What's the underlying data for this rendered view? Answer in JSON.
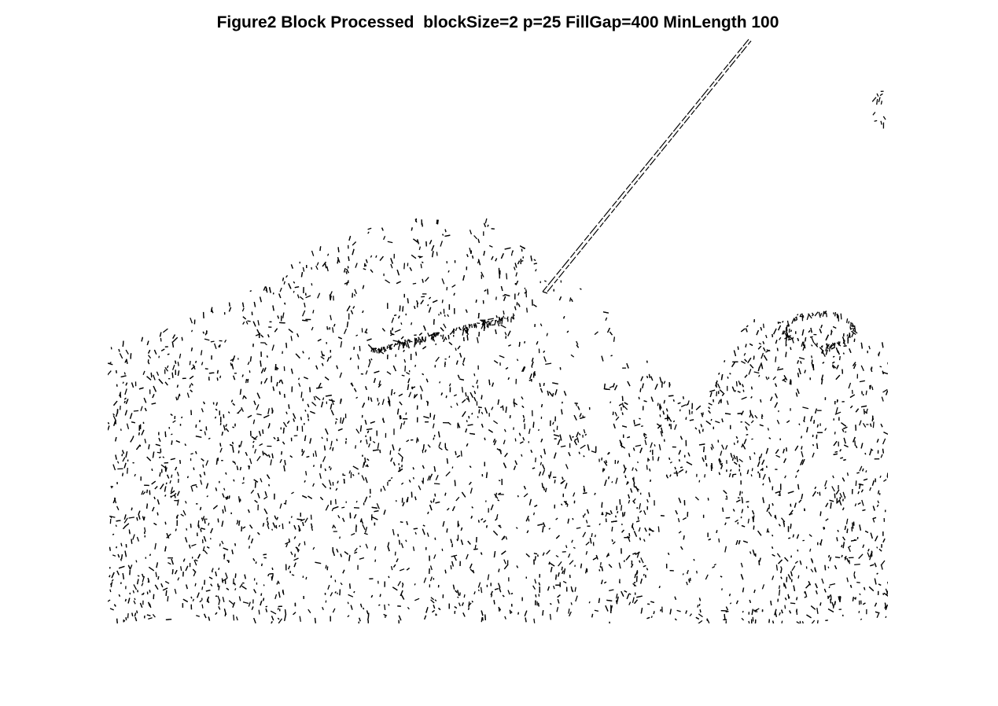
{
  "figure": {
    "title": "Figure2 Block Processed  blockSize=2 p=25 FillGap=400 MinLength 100"
  },
  "image": {
    "kind": "binary edge map",
    "foreground_color": "#000000",
    "background_color": "#ffffff"
  }
}
